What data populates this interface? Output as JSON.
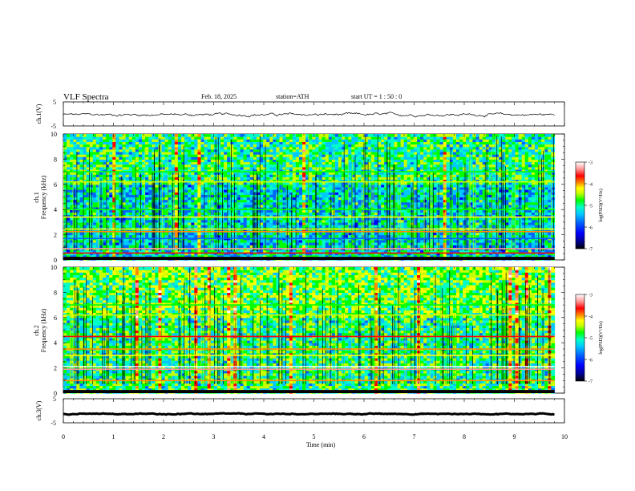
{
  "header": {
    "title": "VLF  Spectra",
    "date": "Feb. 18, 2025",
    "station": "station=ATH",
    "start": "start  UT  =   1 : 50 : 0"
  },
  "panels": {
    "ch1_wave_label": "ch.1(V)",
    "ch1_spec_label_a": "ch.1",
    "ch1_spec_label_b": "Frequency  (kHz)",
    "ch2_spec_label_a": "ch.2",
    "ch2_spec_label_b": "Frequency  (kHz)",
    "ch3_wave_label": "ch.3(V)",
    "colorbar_label": "log(PSD)(V²/Hz)"
  },
  "colors": {
    "spectrogram_scale": [
      "#000000",
      "#00008c",
      "#0000ff",
      "#0064ff",
      "#00c8ff",
      "#00ffc8",
      "#00ff00",
      "#c8ff00",
      "#ffff00",
      "#ff8c00",
      "#ff0000",
      "#ff9696",
      "#ffffff"
    ]
  },
  "chart_data": [
    {
      "type": "line",
      "name": "ch1 waveform",
      "ylabel": "ch.1(V)",
      "ylim": [
        -5,
        5
      ],
      "yticks": [
        "5",
        "-5"
      ],
      "x_range_min": [
        0,
        9.8
      ],
      "y_baseline": -0.3,
      "y_noise_amplitude": 0.6
    },
    {
      "type": "heatmap",
      "name": "ch1 spectrogram",
      "ylabel": "Frequency  (kHz)",
      "ylim": [
        0,
        10
      ],
      "yticks": [
        "0",
        "2",
        "4",
        "6",
        "8",
        "10"
      ],
      "x_range_min": [
        0,
        9.8
      ],
      "value_range_logpsd": [
        -7,
        -3
      ],
      "background_level": -5.5,
      "horizontal_bands_khz": [
        {
          "f": 0.2,
          "level": -3.0
        },
        {
          "f": 0.55,
          "level": -3.6
        },
        {
          "f": 0.9,
          "level": -3.3
        },
        {
          "f": 1.7,
          "level": -6.0
        },
        {
          "f": 2.25,
          "level": -4.0
        },
        {
          "f": 2.45,
          "level": -4.4
        },
        {
          "f": 3.4,
          "level": -4.3
        },
        {
          "f": 4.0,
          "level": -5.0
        },
        {
          "f": 6.2,
          "level": -4.6
        },
        {
          "f": 7.0,
          "level": -5.0
        }
      ]
    },
    {
      "type": "heatmap",
      "name": "ch2 spectrogram",
      "ylabel": "Frequency  (kHz)",
      "ylim": [
        0,
        10
      ],
      "yticks": [
        "0",
        "2",
        "4",
        "6",
        "8",
        "10"
      ],
      "x_range_min": [
        0,
        9.8
      ],
      "value_range_logpsd": [
        -7,
        -3
      ],
      "background_level": -5.2,
      "horizontal_bands_khz": [
        {
          "f": 0.2,
          "level": -3.0
        },
        {
          "f": 1.0,
          "level": -4.0
        },
        {
          "f": 1.9,
          "level": -3.2
        },
        {
          "f": 2.1,
          "level": -3.0
        },
        {
          "f": 3.0,
          "level": -4.2
        },
        {
          "f": 3.5,
          "level": -4.0
        },
        {
          "f": 4.5,
          "level": -3.6
        },
        {
          "f": 6.2,
          "level": -4.6
        },
        {
          "f": 7.0,
          "level": -5.0
        }
      ]
    },
    {
      "type": "line",
      "name": "ch3 waveform",
      "ylabel": "ch.3(V)",
      "ylim": [
        -5,
        5
      ],
      "yticks": [
        "5",
        "-5"
      ],
      "x_range_min": [
        0,
        9.8
      ],
      "y_baseline": -1.3,
      "y_noise_amplitude": 0.2
    },
    {
      "type": "colorbar",
      "name": "PSD color scale",
      "label": "log(PSD)(V²/Hz)",
      "range": [
        -7,
        -3
      ],
      "ticks": [
        "-3",
        "-4",
        "-5",
        "-6",
        "-7"
      ]
    }
  ],
  "xaxis": {
    "label": "Time  (min)",
    "range": [
      0,
      10
    ],
    "ticks": [
      "0",
      "1",
      "2",
      "3",
      "4",
      "5",
      "6",
      "7",
      "8",
      "9",
      "10"
    ]
  }
}
